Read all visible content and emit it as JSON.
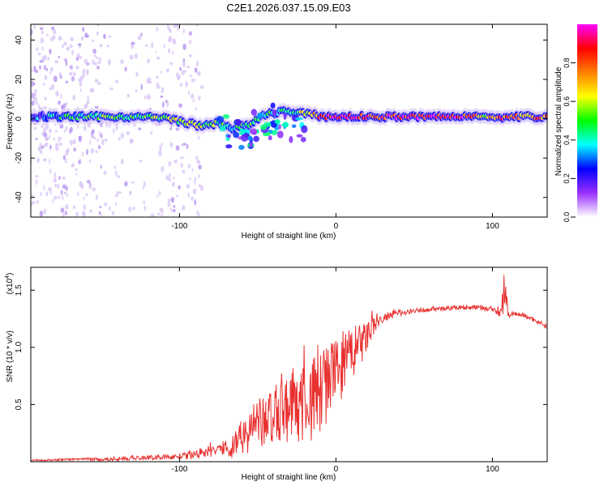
{
  "title": "C2E1.2026.037.15.09.E03",
  "chart_data": [
    {
      "type": "heatmap",
      "title": "C2E1.2026.037.15.09.E03",
      "xlabel": "Height of straight line (km)",
      "ylabel": "Frequency (Hz)",
      "xlim": [
        -195,
        135
      ],
      "ylim": [
        -50,
        48
      ],
      "xticks": [
        -100,
        0,
        100
      ],
      "xtick_labels": [
        "-100",
        "0",
        "100"
      ],
      "yticks": [
        -40,
        -20,
        0,
        20,
        40
      ],
      "ytick_labels": [
        "-40",
        "-20",
        "0",
        "20",
        "40"
      ],
      "ridge": {
        "description": "dominant spectral ridge (frequency vs height)",
        "x": [
          -195,
          -160,
          -130,
          -110,
          -95,
          -85,
          -75,
          -65,
          -55,
          -45,
          -35,
          -25,
          -15,
          -5,
          0,
          20,
          50,
          80,
          95,
          105,
          115,
          135
        ],
        "freq": [
          1,
          1,
          1,
          0.5,
          -2,
          -4,
          -2,
          -5,
          -3,
          2,
          4,
          3,
          2,
          1,
          1,
          1,
          1,
          1,
          2,
          0,
          1,
          1
        ],
        "amplitude": [
          0.3,
          0.45,
          0.5,
          0.55,
          0.6,
          0.55,
          0.5,
          0.4,
          0.45,
          0.4,
          0.4,
          0.45,
          0.7,
          0.9,
          0.9,
          0.85,
          0.9,
          0.9,
          0.6,
          0.8,
          0.7,
          0.8
        ]
      },
      "colorbar": {
        "label": "Normalized spectral amplitude",
        "range": [
          0,
          1
        ],
        "ticks": [
          0.0,
          0.2,
          0.4,
          0.6,
          0.8
        ],
        "tick_labels": [
          "0.0",
          "0.2",
          "0.4",
          "0.6",
          "0.8"
        ],
        "colormap": [
          "#ffffff",
          "#9b30ff",
          "#0000ff",
          "#00ffff",
          "#00ff00",
          "#ffff00",
          "#ff8000",
          "#ff0000",
          "#ff00ff"
        ]
      }
    },
    {
      "type": "line",
      "xlabel": "Height of straight line (km)",
      "ylabel": "SNR (10 * v/v)",
      "scale_label": "(x10",
      "scale_exponent": "4",
      "xlim": [
        -195,
        135
      ],
      "ylim": [
        0,
        1.7
      ],
      "xticks": [
        -100,
        0,
        100
      ],
      "xtick_labels": [
        "-100",
        "0",
        "100"
      ],
      "yticks": [
        0.5,
        1.0,
        1.5
      ],
      "ytick_labels": [
        "0.5",
        "1.0",
        "1.5"
      ],
      "series": [
        {
          "name": "SNR",
          "color": "#e8302f",
          "x": [
            -195,
            -170,
            -150,
            -130,
            -110,
            -95,
            -85,
            -75,
            -65,
            -55,
            -45,
            -35,
            -25,
            -15,
            -10,
            -5,
            0,
            5,
            10,
            15,
            20,
            25,
            30,
            40,
            50,
            60,
            70,
            80,
            90,
            100,
            105,
            108,
            110,
            112,
            120,
            130,
            135
          ],
          "y": [
            0.01,
            0.02,
            0.02,
            0.03,
            0.04,
            0.05,
            0.08,
            0.1,
            0.15,
            0.28,
            0.35,
            0.45,
            0.5,
            0.55,
            0.65,
            0.7,
            0.8,
            0.85,
            0.95,
            1.0,
            1.1,
            1.2,
            1.25,
            1.3,
            1.32,
            1.33,
            1.34,
            1.35,
            1.35,
            1.33,
            1.3,
            1.55,
            1.28,
            1.3,
            1.28,
            1.22,
            1.18
          ],
          "noise_amplitude": [
            0.005,
            0.01,
            0.015,
            0.02,
            0.02,
            0.03,
            0.05,
            0.06,
            0.12,
            0.2,
            0.25,
            0.3,
            0.35,
            0.4,
            0.45,
            0.35,
            0.3,
            0.3,
            0.25,
            0.2,
            0.15,
            0.08,
            0.05,
            0.03,
            0.02,
            0.02,
            0.02,
            0.02,
            0.02,
            0.02,
            0.05,
            0.3,
            0.05,
            0.02,
            0.02,
            0.02,
            0.02
          ]
        }
      ]
    }
  ]
}
